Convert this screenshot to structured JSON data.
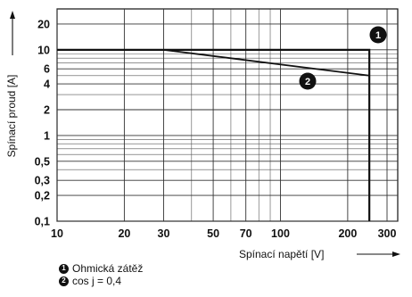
{
  "chart_data": {
    "type": "line",
    "xscale": "log",
    "yscale": "log",
    "xlim": [
      10,
      300
    ],
    "ylim": [
      0.1,
      30
    ],
    "x_major_ticks": [
      10,
      20,
      30,
      50,
      70,
      100,
      200,
      300
    ],
    "x_minor_ticks": [
      40,
      60,
      80,
      90
    ],
    "y_major_ticks": [
      0.1,
      0.2,
      0.3,
      0.5,
      1,
      2,
      4,
      6,
      10,
      20
    ],
    "y_minor_ticks": [
      0.4,
      0.6,
      0.7,
      0.8,
      0.9,
      3,
      5,
      7,
      8,
      9
    ],
    "x_tick_labels": [
      "10",
      "20",
      "30",
      "50",
      "70",
      "100",
      "200",
      "300"
    ],
    "y_tick_labels": [
      "0,1",
      "0,2",
      "0,3",
      "0,5",
      "1",
      "2",
      "4",
      "6",
      "10",
      "20"
    ],
    "xlabel": "Spínací napětí [V]",
    "ylabel": "Spínací proud [A]",
    "grid": true,
    "series": [
      {
        "name": "Ohmická zátěž",
        "marker": "1",
        "x": [
          10,
          250,
          250
        ],
        "y": [
          10,
          10,
          0.1
        ]
      },
      {
        "name": "cos j = 0,4",
        "marker": "2",
        "x": [
          30,
          250
        ],
        "y": [
          10,
          5
        ]
      }
    ],
    "legend": [
      {
        "marker": "1",
        "label": "Ohmická zátěž"
      },
      {
        "marker": "2",
        "label": "cos j = 0,4"
      }
    ],
    "legend_position": "bottom-left"
  }
}
